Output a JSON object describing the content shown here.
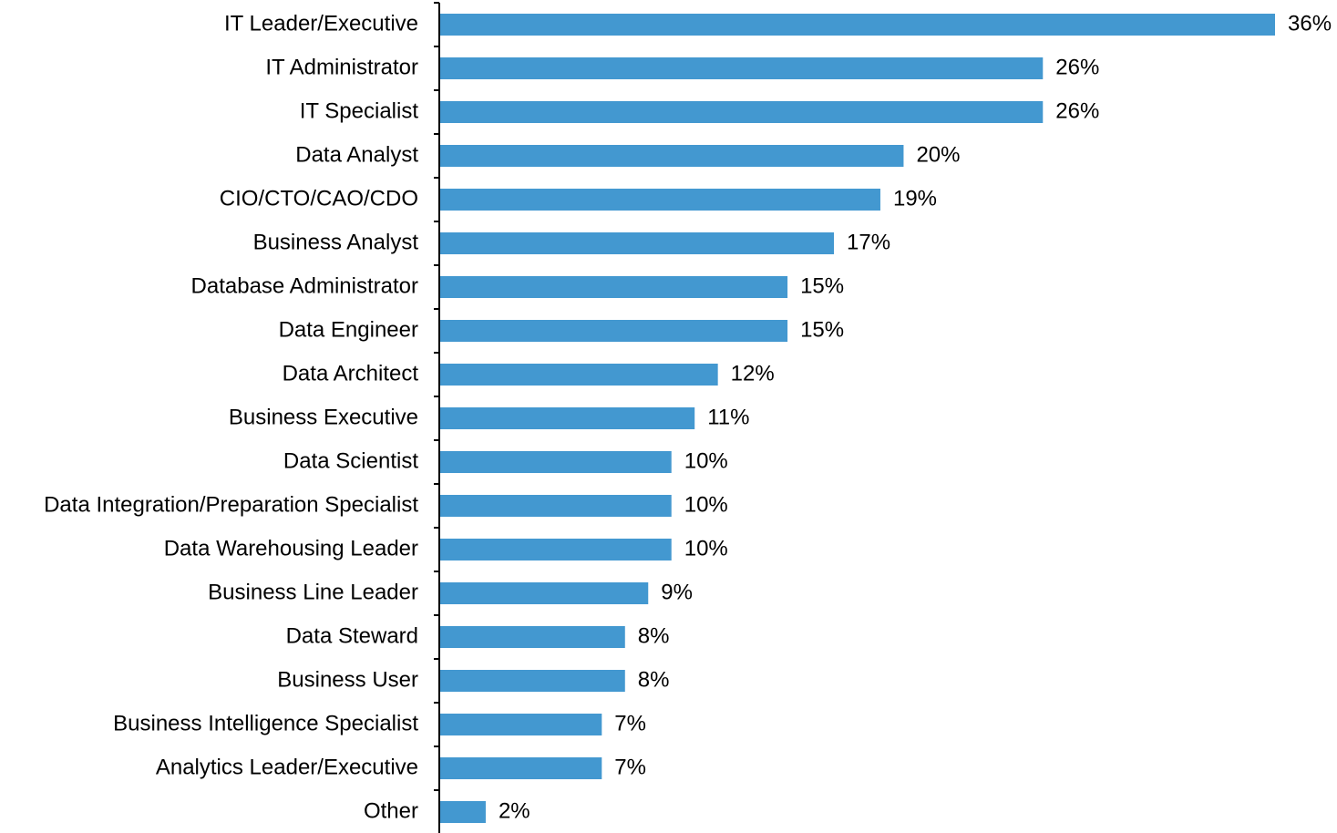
{
  "chart_data": {
    "type": "hbar",
    "categories": [
      "IT Leader/Executive",
      "IT Administrator",
      "IT Specialist",
      "Data Analyst",
      "CIO/CTO/CAO/CDO",
      "Business Analyst",
      "Database Administrator",
      "Data Engineer",
      "Data Architect",
      "Business Executive",
      "Data Scientist",
      "Data Integration/Preparation Specialist",
      "Data Warehousing Leader",
      "Business Line Leader",
      "Data Steward",
      "Business User",
      "Business Intelligence Specialist",
      "Analytics Leader/Executive",
      "Other"
    ],
    "values": [
      36,
      26,
      26,
      20,
      19,
      17,
      15,
      15,
      12,
      11,
      10,
      10,
      10,
      9,
      8,
      8,
      7,
      7,
      2
    ],
    "value_labels": [
      "36%",
      "26%",
      "26%",
      "20%",
      "19%",
      "17%",
      "15%",
      "15%",
      "12%",
      "11%",
      "10%",
      "10%",
      "10%",
      "9%",
      "8%",
      "8%",
      "7%",
      "7%",
      "2%"
    ],
    "color": "#4398d0"
  }
}
